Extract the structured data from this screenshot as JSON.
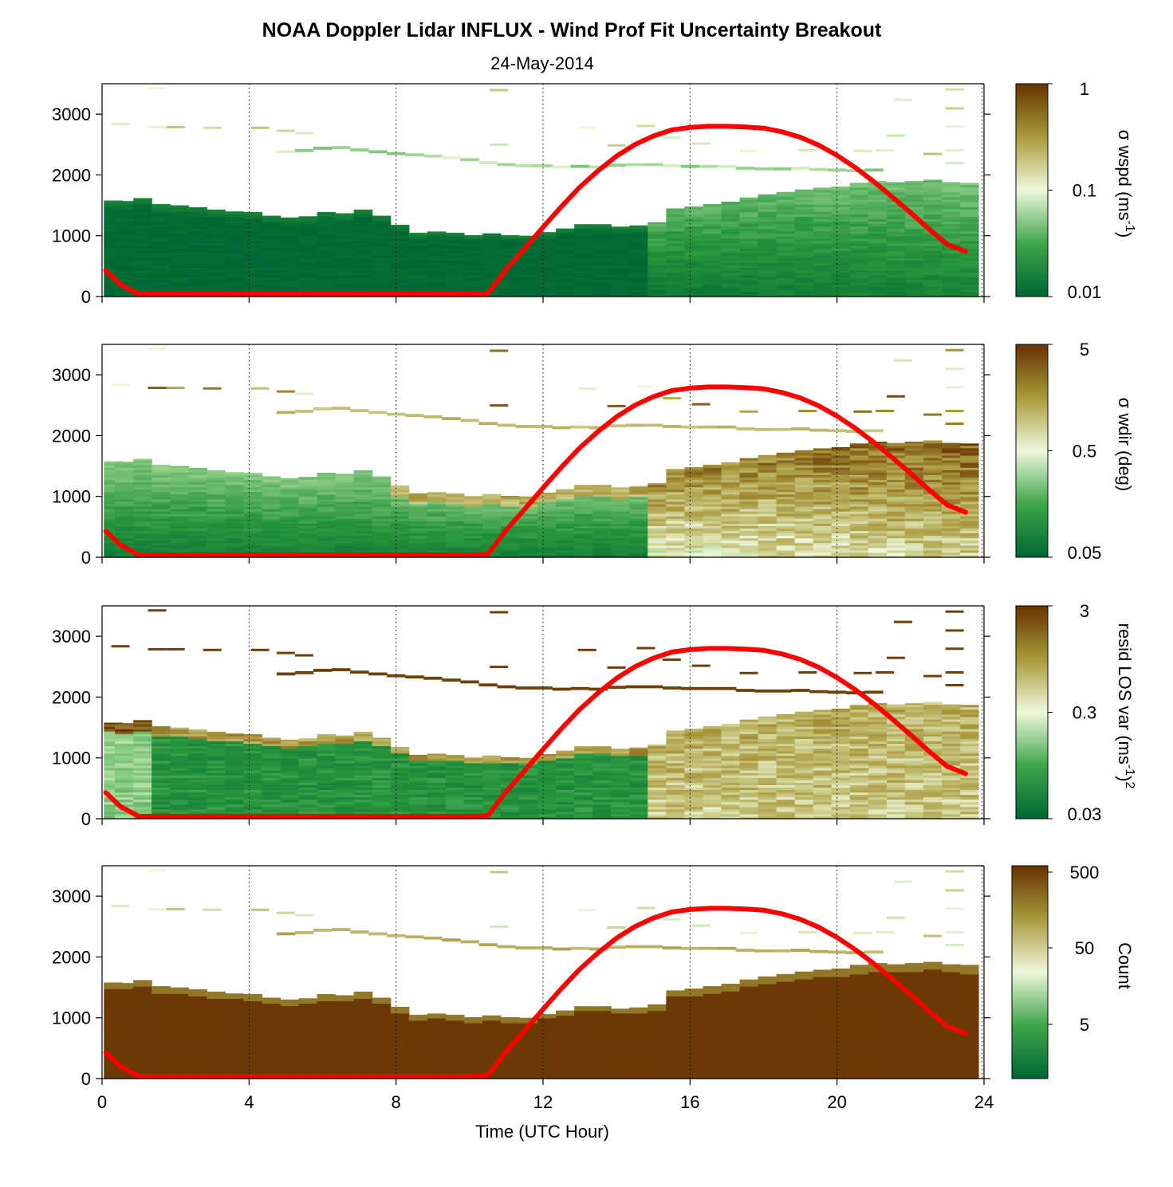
{
  "title": "NOAA Doppler Lidar INFLUX - Wind Prof Fit Uncertainty Breakout",
  "subtitle": "24-May-2014",
  "xlabel": "Time (UTC Hour)",
  "colors": {
    "dark_green": "#006633",
    "light": "#f5fbe8",
    "dark_brown": "#663300",
    "sun_curve": "#ff0000"
  },
  "chart_data": [
    {
      "type": "heatmap",
      "panel": "wspd",
      "ylabel_main": "σ wspd (ms",
      "ylabel_sup": "-1",
      "ylabel_tail": ")",
      "colorbar_ticks": [
        "1",
        "0.1",
        "0.01"
      ],
      "colorbar_range": [
        0.01,
        1
      ],
      "colorbar_scale": "log",
      "xlim": [
        0,
        24
      ],
      "ylim": [
        0,
        3500
      ],
      "x_ticks": [
        0,
        4,
        8,
        12,
        16,
        20,
        24
      ],
      "y_ticks": [
        0,
        1000,
        2000,
        3000
      ]
    },
    {
      "type": "heatmap",
      "panel": "wdir",
      "ylabel_main": "σ wdir (deg)",
      "ylabel_sup": "",
      "ylabel_tail": "",
      "colorbar_ticks": [
        "5",
        "0.5",
        "0.05"
      ],
      "colorbar_range": [
        0.05,
        5
      ],
      "colorbar_scale": "log",
      "xlim": [
        0,
        24
      ],
      "ylim": [
        0,
        3500
      ],
      "x_ticks": [
        0,
        4,
        8,
        12,
        16,
        20,
        24
      ],
      "y_ticks": [
        0,
        1000,
        2000,
        3000
      ]
    },
    {
      "type": "heatmap",
      "panel": "resid",
      "ylabel_main": "resid LOS var (ms",
      "ylabel_sup": "-1",
      "ylabel_tail": ")",
      "ylabel_sup2": "2",
      "colorbar_ticks": [
        "3",
        "0.3",
        "0.03"
      ],
      "colorbar_range": [
        0.03,
        3
      ],
      "colorbar_scale": "log",
      "xlim": [
        0,
        24
      ],
      "ylim": [
        0,
        3500
      ],
      "x_ticks": [
        0,
        4,
        8,
        12,
        16,
        20,
        24
      ],
      "y_ticks": [
        0,
        1000,
        2000,
        3000
      ]
    },
    {
      "type": "heatmap",
      "panel": "count",
      "ylabel_main": "Count",
      "ylabel_sup": "",
      "ylabel_tail": "",
      "colorbar_ticks": [
        "500",
        "50",
        "5"
      ],
      "colorbar_range": [
        1,
        500
      ],
      "colorbar_scale": "log",
      "xlim": [
        0,
        24
      ],
      "ylim": [
        0,
        3500
      ],
      "x_ticks": [
        0,
        4,
        8,
        12,
        16,
        20,
        24
      ],
      "y_ticks": [
        0,
        1000,
        2000,
        3000
      ],
      "x_tick_labels_shown": true
    }
  ],
  "boundary_layer_top": {
    "x": [
      0.1,
      0.6,
      1.1,
      1.6,
      2.1,
      2.6,
      3.1,
      3.6,
      4.1,
      4.6,
      5.1,
      5.6,
      6.1,
      6.6,
      7.1,
      7.6,
      8.1,
      8.6,
      9.1,
      9.6,
      10.1,
      10.6,
      11.1,
      11.6,
      12.1,
      12.6,
      13.1,
      13.6,
      14.1,
      14.6,
      15.1,
      15.6,
      16.1,
      16.6,
      17.1,
      17.6,
      18.1,
      18.6,
      19.1,
      19.6,
      20.1,
      20.6,
      21.1,
      21.6,
      22.1,
      22.6,
      23.1,
      23.6
    ],
    "y": [
      1580,
      1570,
      1620,
      1520,
      1500,
      1470,
      1430,
      1400,
      1390,
      1330,
      1300,
      1320,
      1390,
      1370,
      1430,
      1330,
      1180,
      1050,
      1070,
      1050,
      1010,
      1040,
      1010,
      1000,
      1060,
      1120,
      1190,
      1190,
      1150,
      1170,
      1220,
      1450,
      1480,
      1520,
      1560,
      1630,
      1680,
      1720,
      1760,
      1790,
      1810,
      1870,
      1900,
      1880,
      1900,
      1920,
      1880,
      1870
    ]
  },
  "upper_layer": {
    "x": [
      5.0,
      5.5,
      6.0,
      6.5,
      7.0,
      7.5,
      8.0,
      8.5,
      9.0,
      9.5,
      10.0,
      10.5,
      11.0,
      11.5,
      12.0,
      12.5,
      13.0,
      13.5,
      14.0,
      14.5,
      15.0,
      15.5,
      16.0,
      16.5,
      17.0,
      17.5,
      18.0,
      18.5,
      19.0,
      19.5,
      20.0,
      20.5,
      21.0
    ],
    "y": [
      2380,
      2400,
      2440,
      2450,
      2410,
      2380,
      2350,
      2330,
      2310,
      2280,
      2250,
      2200,
      2170,
      2150,
      2150,
      2130,
      2140,
      2130,
      2160,
      2170,
      2170,
      2150,
      2140,
      2140,
      2140,
      2110,
      2100,
      2100,
      2110,
      2090,
      2080,
      2070,
      2080
    ]
  },
  "sun_elevation_curve": {
    "x": [
      0.1,
      0.5,
      1.0,
      1.5,
      2,
      3,
      4,
      5,
      6,
      7,
      8,
      9,
      10,
      10.5,
      11,
      11.5,
      12,
      12.5,
      13,
      13.5,
      14,
      14.5,
      15,
      15.5,
      16,
      16.5,
      17,
      17.5,
      18,
      18.5,
      19,
      19.5,
      20,
      20.5,
      21,
      21.5,
      22,
      22.5,
      23,
      23.5
    ],
    "y": [
      430,
      200,
      0,
      0,
      0,
      0,
      0,
      0,
      0,
      0,
      0,
      0,
      0,
      50,
      450,
      790,
      1140,
      1480,
      1800,
      2070,
      2310,
      2500,
      2640,
      2740,
      2780,
      2800,
      2800,
      2790,
      2770,
      2710,
      2620,
      2490,
      2320,
      2120,
      1890,
      1640,
      1380,
      1110,
      860,
      740
    ]
  }
}
